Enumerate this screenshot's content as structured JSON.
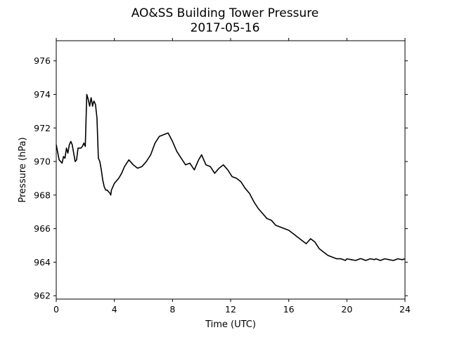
{
  "chart_data": {
    "type": "line",
    "title": "AO&SS Building Tower Pressure",
    "subtitle": "2017-05-16",
    "xlabel": "Time (UTC)",
    "ylabel": "Pressure (hPa)",
    "xlim": [
      0,
      24
    ],
    "ylim": [
      961.8,
      977.2
    ],
    "xticks": [
      0,
      4,
      8,
      12,
      16,
      20,
      24
    ],
    "yticks": [
      962,
      964,
      966,
      968,
      970,
      972,
      974,
      976
    ],
    "grid": false,
    "line_color": "#000000",
    "series": [
      {
        "x": [
          0,
          0.2,
          0.4,
          0.5,
          0.6,
          0.7,
          0.8,
          0.9,
          1.0,
          1.1,
          1.2,
          1.3,
          1.4,
          1.5,
          1.6,
          1.7,
          1.8,
          1.9,
          2.0,
          2.1,
          2.2,
          2.3,
          2.4,
          2.5,
          2.55,
          2.6,
          2.7,
          2.8,
          2.9,
          3.0,
          3.1,
          3.2,
          3.3,
          3.4,
          3.5,
          3.6,
          3.7,
          3.75,
          3.8,
          3.9,
          4.0,
          4.1,
          4.2,
          4.3,
          4.5,
          4.7,
          5.0,
          5.3,
          5.6,
          5.9,
          6.2,
          6.5,
          6.8,
          7.1,
          7.4,
          7.7,
          8.0,
          8.3,
          8.6,
          8.9,
          9.2,
          9.5,
          9.8,
          10.0,
          10.3,
          10.6,
          10.9,
          11.2,
          11.5,
          11.8,
          12.1,
          12.4,
          12.7,
          13.0,
          13.3,
          13.6,
          13.9,
          14.2,
          14.5,
          14.8,
          15.1,
          15.4,
          15.7,
          16.0,
          16.3,
          16.6,
          16.9,
          17.2,
          17.5,
          17.8,
          18.1,
          18.4,
          18.7,
          19.0,
          19.3,
          19.6,
          19.9,
          20.0,
          20.3,
          20.6,
          20.9,
          21.0,
          21.3,
          21.6,
          21.9,
          22.0,
          22.3,
          22.6,
          22.9,
          23.2,
          23.5,
          23.8,
          24.0
        ],
        "y": [
          971.0,
          970.1,
          969.9,
          970.3,
          970.2,
          970.8,
          970.5,
          971.0,
          971.2,
          971.0,
          970.5,
          970.0,
          970.1,
          970.8,
          970.8,
          970.8,
          970.9,
          971.1,
          970.9,
          974.0,
          973.7,
          973.3,
          973.8,
          973.3,
          973.5,
          973.6,
          973.4,
          972.6,
          970.2,
          970.0,
          969.5,
          968.9,
          968.5,
          968.3,
          968.3,
          968.2,
          968.1,
          968.0,
          968.3,
          968.5,
          968.7,
          968.8,
          968.9,
          969.0,
          969.3,
          969.7,
          970.1,
          969.8,
          969.6,
          969.7,
          970.0,
          970.4,
          971.1,
          971.5,
          971.6,
          971.7,
          971.2,
          970.6,
          970.2,
          969.8,
          969.9,
          969.5,
          970.1,
          970.4,
          969.8,
          969.7,
          969.3,
          969.6,
          969.8,
          969.5,
          969.1,
          969.0,
          968.8,
          968.4,
          968.1,
          967.6,
          967.2,
          966.9,
          966.6,
          966.5,
          966.2,
          966.1,
          966.0,
          965.9,
          965.7,
          965.5,
          965.3,
          965.1,
          965.4,
          965.2,
          964.8,
          964.6,
          964.4,
          964.3,
          964.2,
          964.2,
          964.1,
          964.2,
          964.15,
          964.1,
          964.2,
          964.2,
          964.1,
          964.2,
          964.15,
          964.2,
          964.1,
          964.2,
          964.15,
          964.1,
          964.2,
          964.15,
          964.2
        ]
      }
    ]
  }
}
